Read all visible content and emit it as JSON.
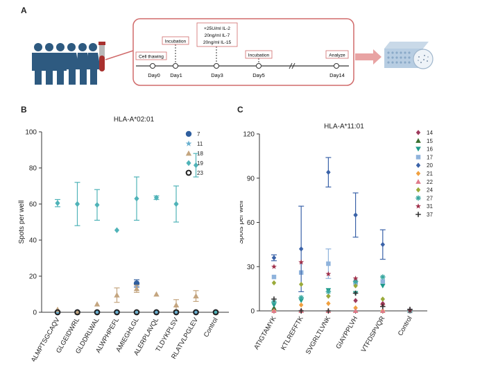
{
  "panel_labels": {
    "a": "A",
    "b": "B",
    "c": "C"
  },
  "timeline": {
    "days": [
      "Day0",
      "Day1",
      "Day3",
      "Day5",
      "Day14"
    ],
    "boxes": [
      "Cell thawing",
      "Incubation",
      "Incubation",
      "Analyze"
    ],
    "cytokines": [
      "+25U/ml IL-2",
      "20ng/ml IL-7",
      "20ng/ml IL-15"
    ]
  },
  "colors": {
    "box_border": "#d06a6a",
    "arrow": "#e8a3a3",
    "people": "#2e5a80",
    "tube_red": "#a8302e",
    "axis": "#333333"
  },
  "chart_data": [
    {
      "type": "scatter",
      "title": "HLA-A*02:01",
      "ylabel": "Spots per well",
      "xlabel": "",
      "ylim": [
        0,
        100
      ],
      "yticks": [
        0,
        20,
        40,
        60,
        80,
        100
      ],
      "categories": [
        "ALMPTSGCAQV",
        "GLGEIDWRL",
        "GLDDRLWAL",
        "ALWPHPEFL",
        "AMIEGHLGL",
        "ALERPLAVQL",
        "TLDYKPLSV",
        "RLATVLPGLEV",
        "Control"
      ],
      "legend_position": "top-right",
      "series": [
        {
          "name": "7",
          "color": "#2f5e9e",
          "marker": "circle",
          "values": [
            0,
            0,
            0,
            0,
            16,
            0,
            0,
            0,
            0
          ],
          "errors": [
            0,
            0,
            0,
            0,
            2,
            0,
            0,
            0,
            0
          ]
        },
        {
          "name": "11",
          "color": "#6ab0cf",
          "marker": "star",
          "values": [
            0,
            0,
            0,
            0,
            0,
            0,
            0,
            0,
            0
          ],
          "errors": [
            0,
            0,
            0,
            0,
            0,
            0,
            0,
            0,
            0
          ]
        },
        {
          "name": "18",
          "color": "#c4a57f",
          "marker": "triangle",
          "values": [
            1.5,
            0,
            4.5,
            9.5,
            13,
            10,
            4,
            9,
            0
          ],
          "errors": [
            0,
            0,
            0,
            4,
            2,
            0,
            3,
            3,
            0
          ]
        },
        {
          "name": "19",
          "color": "#4fb3b8",
          "marker": "diamond",
          "values": [
            60.5,
            60,
            59.5,
            45.5,
            63,
            63.5,
            60,
            81.5,
            0
          ],
          "errors": [
            2,
            12,
            8.5,
            0,
            12,
            1,
            10,
            6.5,
            0
          ]
        },
        {
          "name": "23",
          "color": "#222222",
          "marker": "ring",
          "values": [
            0,
            0,
            0,
            0,
            0,
            0,
            0,
            0,
            0
          ],
          "errors": [
            0,
            0,
            0,
            0,
            0,
            0,
            0,
            0,
            0
          ]
        }
      ]
    },
    {
      "type": "scatter",
      "title": "HLA-A*11:01",
      "ylabel": "Spots per well",
      "xlabel": "",
      "ylim": [
        0,
        120
      ],
      "yticks": [
        0,
        30,
        60,
        90,
        120
      ],
      "categories": [
        "ATIGTAMYK",
        "KTLREFFTK",
        "SVGRLTLVNK",
        "GIAYPPLVH",
        "VTFDSPVQR",
        "Control"
      ],
      "legend_position": "top-right",
      "series": [
        {
          "name": "14",
          "color": "#9e3a5c",
          "marker": "diamond",
          "values": [
            0,
            0,
            10,
            7,
            5,
            0
          ],
          "errors": [
            0,
            0,
            0,
            0,
            0,
            0
          ]
        },
        {
          "name": "15",
          "color": "#3a6e2e",
          "marker": "triangle",
          "values": [
            2,
            0,
            0,
            0,
            0,
            0
          ],
          "errors": [
            0,
            0,
            0,
            0,
            0,
            0
          ]
        },
        {
          "name": "16",
          "color": "#1e9a8a",
          "marker": "triangle-down",
          "values": [
            4,
            7,
            14,
            12,
            17,
            0
          ],
          "errors": [
            0,
            0,
            0,
            0,
            0,
            0
          ]
        },
        {
          "name": "17",
          "color": "#8fb3dc",
          "marker": "square",
          "values": [
            23,
            26,
            32,
            19,
            20,
            0
          ],
          "errors": [
            0,
            0,
            10,
            0,
            0,
            0
          ]
        },
        {
          "name": "20",
          "color": "#3a62a8",
          "marker": "diamond",
          "values": [
            36,
            42,
            94,
            65,
            45,
            0
          ],
          "errors": [
            2,
            29,
            10,
            15,
            10,
            0
          ]
        },
        {
          "name": "21",
          "color": "#f0a040",
          "marker": "diamond",
          "values": [
            0,
            4,
            5,
            2,
            0,
            0
          ],
          "errors": [
            0,
            0,
            0,
            0,
            0,
            0
          ]
        },
        {
          "name": "22",
          "color": "#e07a8a",
          "marker": "triangle",
          "values": [
            0,
            0,
            0,
            0,
            0,
            1
          ],
          "errors": [
            0,
            0,
            0,
            0,
            0,
            0
          ]
        },
        {
          "name": "24",
          "color": "#9aaa3a",
          "marker": "diamond",
          "values": [
            19,
            18,
            10,
            17,
            8,
            0
          ],
          "errors": [
            0,
            0,
            0,
            0,
            0,
            0
          ]
        },
        {
          "name": "27",
          "color": "#3aa8a0",
          "marker": "asterisk",
          "values": [
            6,
            9,
            13,
            20,
            23,
            0
          ],
          "errors": [
            0,
            0,
            0,
            0,
            0,
            0
          ]
        },
        {
          "name": "31",
          "color": "#a0304a",
          "marker": "star",
          "values": [
            30,
            33,
            25,
            22,
            4,
            0
          ],
          "errors": [
            0,
            0,
            0,
            0,
            0,
            0
          ]
        },
        {
          "name": "37",
          "color": "#333333",
          "marker": "plus",
          "values": [
            8,
            0,
            0,
            12,
            3,
            1
          ],
          "errors": [
            0,
            0,
            0,
            0,
            0,
            0
          ]
        }
      ]
    }
  ]
}
